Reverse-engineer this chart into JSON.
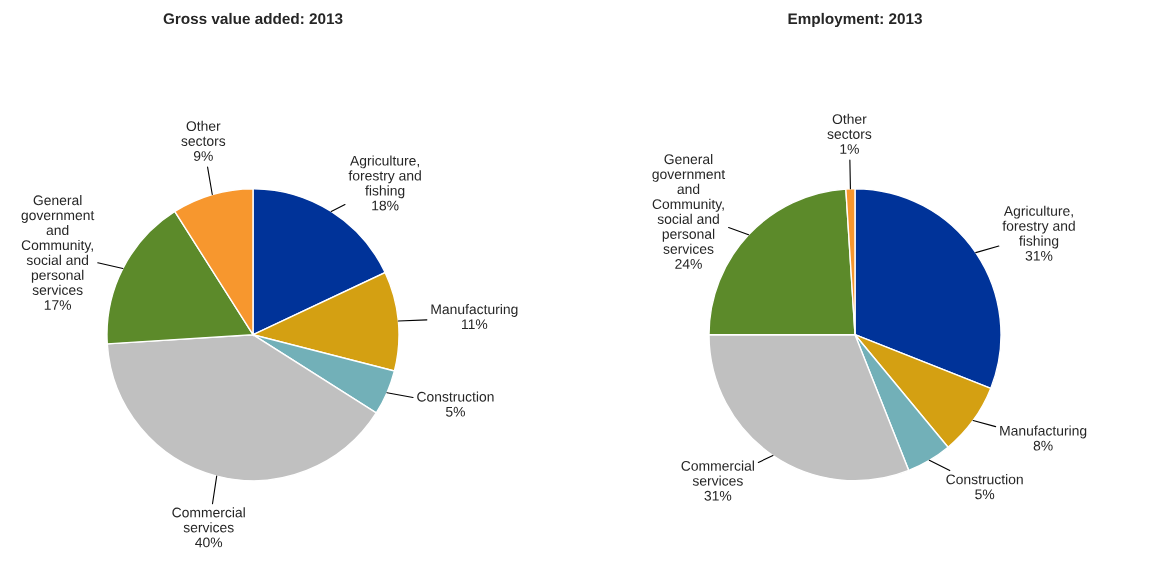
{
  "chart_data": [
    {
      "type": "pie",
      "title": "Gross value added: 2013",
      "categories": [
        "Agriculture,\nforestry and\nfishing",
        "Manufacturing",
        "Construction",
        "Commercial\nservices",
        "General\ngovernment\nand\nCommunity,\nsocial and\npersonal\nservices",
        "Other\nsectors"
      ],
      "values": [
        18,
        11,
        5,
        40,
        17,
        9
      ],
      "value_labels": [
        "18%",
        "11%",
        "5%",
        "40%",
        "17%",
        "9%"
      ],
      "colors": [
        "#003399",
        "#d4a012",
        "#72b0b8",
        "#c0c0c0",
        "#5c8a2a",
        "#f7972e"
      ],
      "legend": false
    },
    {
      "type": "pie",
      "title": "Employment: 2013",
      "categories": [
        "Agriculture,\nforestry and\nfishing",
        "Manufacturing",
        "Construction",
        "Commercial\nservices",
        "General\ngovernment\nand\nCommunity,\nsocial and\npersonal\nservices",
        "Other\nsectors"
      ],
      "values": [
        31,
        8,
        5,
        31,
        24,
        1
      ],
      "value_labels": [
        "31%",
        "8%",
        "5%",
        "31%",
        "24%",
        "1%"
      ],
      "colors": [
        "#003399",
        "#d4a012",
        "#72b0b8",
        "#c0c0c0",
        "#5c8a2a",
        "#f7972e"
      ],
      "legend": false
    }
  ]
}
